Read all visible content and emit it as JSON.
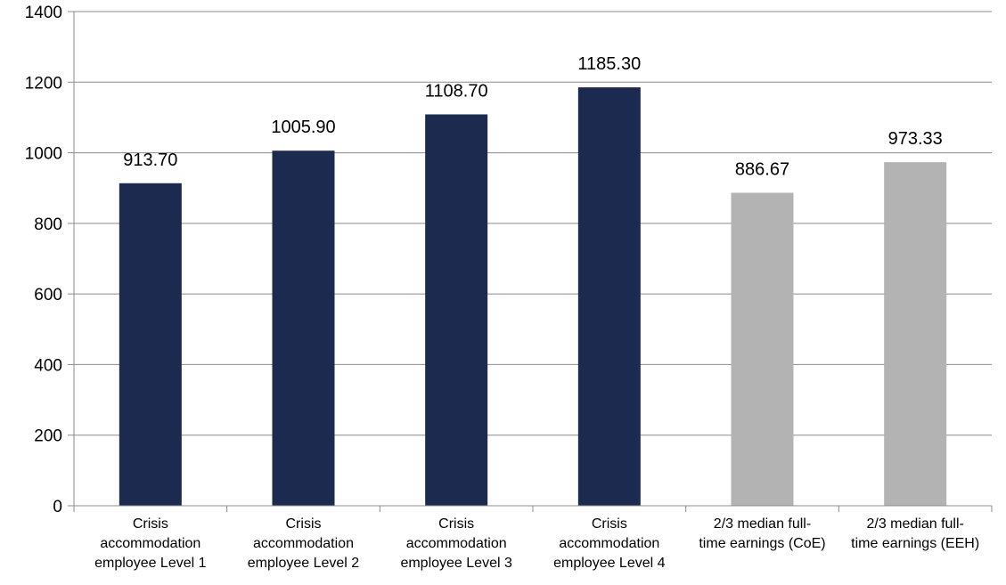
{
  "chart_data": {
    "type": "bar",
    "title": "",
    "xlabel": "",
    "ylabel": "",
    "ylim": [
      0,
      1400
    ],
    "yticks": [
      0,
      200,
      400,
      600,
      800,
      1000,
      1200,
      1400
    ],
    "grid": true,
    "legend": "none",
    "categories": [
      [
        "Crisis",
        "accommodation",
        "employee Level 1"
      ],
      [
        "Crisis",
        "accommodation",
        "employee Level 2"
      ],
      [
        "Crisis",
        "accommodation",
        "employee Level 3"
      ],
      [
        "Crisis",
        "accommodation",
        "employee Level 4"
      ],
      [
        "2/3 median full-",
        "time earnings (CoE)"
      ],
      [
        "2/3 median full-",
        "time earnings (EEH)"
      ]
    ],
    "values": [
      913.7,
      1005.9,
      1108.7,
      1185.3,
      886.67,
      973.33
    ],
    "data_labels": [
      "913.70",
      "1005.90",
      "1108.70",
      "1185.30",
      "886.67",
      "973.33"
    ],
    "bar_colors": [
      "#1b2a4e",
      "#1b2a4e",
      "#1b2a4e",
      "#1b2a4e",
      "#b3b3b3",
      "#b3b3b3"
    ],
    "colors": {
      "gridline": "#8c8c8c",
      "axis": "#8c8c8c"
    }
  }
}
